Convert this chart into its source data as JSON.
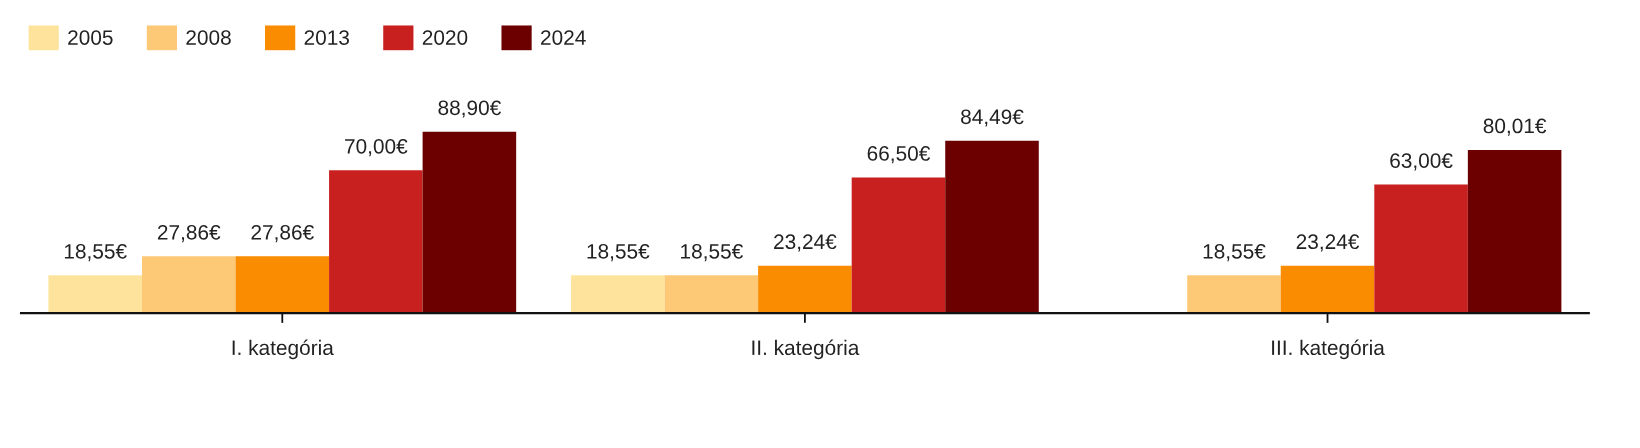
{
  "chart_data": {
    "type": "bar",
    "categories": [
      "I. kategória",
      "II. kategória",
      "III. kategória"
    ],
    "series": [
      {
        "name": "2005",
        "color": "#fde39c",
        "values": [
          18.55,
          18.55,
          null
        ],
        "value_labels": [
          "18,55€",
          "18,55€",
          null
        ]
      },
      {
        "name": "2008",
        "color": "#fdc977",
        "values": [
          27.86,
          18.55,
          18.55
        ],
        "value_labels": [
          "27,86€",
          "18,55€",
          "18,55€"
        ]
      },
      {
        "name": "2013",
        "color": "#f98c01",
        "values": [
          27.86,
          23.24,
          23.24
        ],
        "value_labels": [
          "27,86€",
          "23,24€",
          "23,24€"
        ]
      },
      {
        "name": "2020",
        "color": "#c81f1f",
        "values": [
          70.0,
          66.5,
          63.0
        ],
        "value_labels": [
          "70,00€",
          "66,50€",
          "63,00€"
        ]
      },
      {
        "name": "2024",
        "color": "#6c0000",
        "values": [
          88.9,
          84.49,
          80.01
        ],
        "value_labels": [
          "88,90€",
          "84,49€",
          "80,01€"
        ]
      }
    ],
    "legend": "top left"
  }
}
